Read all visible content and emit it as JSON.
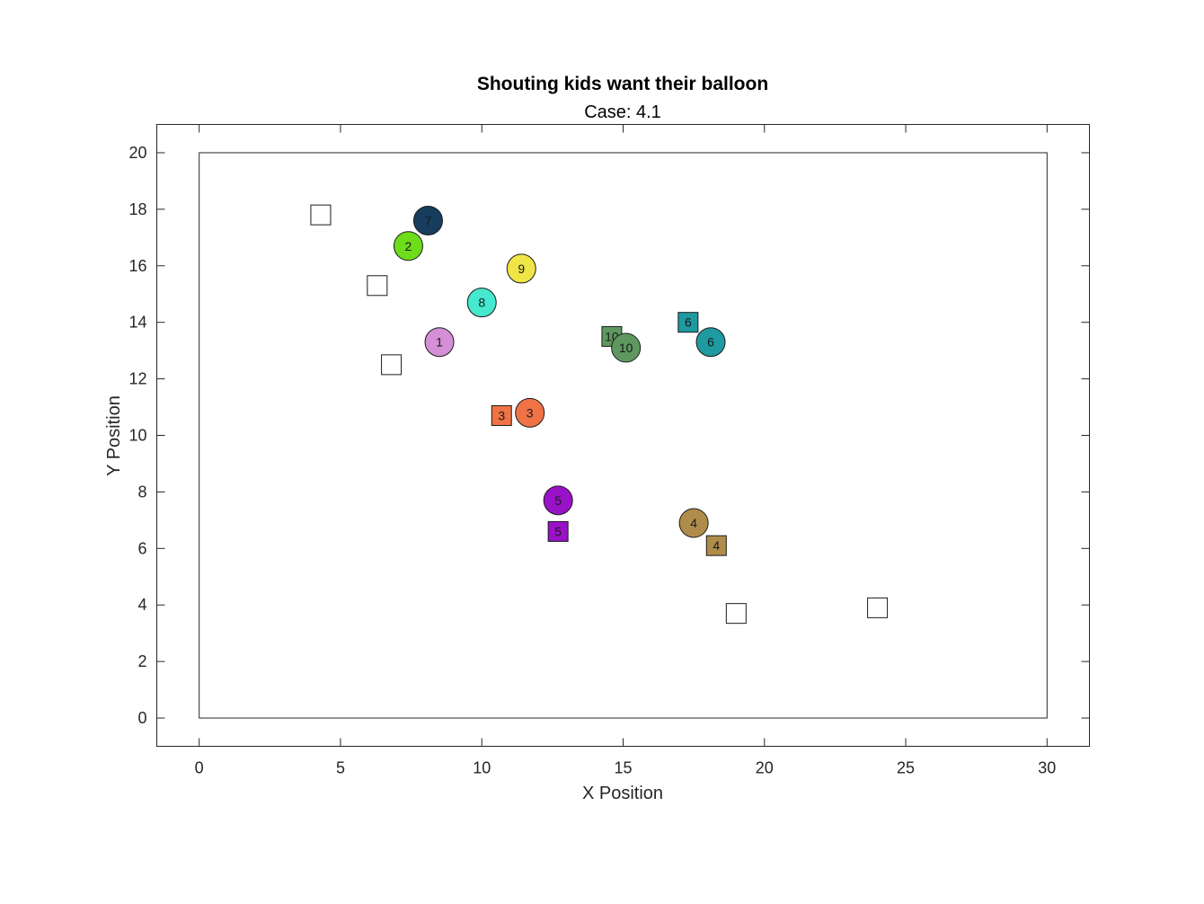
{
  "chart_data": {
    "type": "scatter",
    "title": "Shouting kids want their balloon",
    "subtitle": "Case: 4.1",
    "xlabel": "X Position",
    "ylabel": "Y Position",
    "xlim": [
      -1.5,
      31.5
    ],
    "ylim": [
      -1,
      21
    ],
    "xticks": [
      "0",
      "5",
      "10",
      "15",
      "20",
      "25",
      "30"
    ],
    "yticks": [
      "0",
      "2",
      "4",
      "6",
      "8",
      "10",
      "12",
      "14",
      "16",
      "18",
      "20"
    ],
    "boundary": {
      "x": [
        0,
        30
      ],
      "y": [
        0,
        20
      ]
    },
    "kids": [
      {
        "id": "1",
        "x": 8.5,
        "y": 13.3,
        "color": "#d48fd6"
      },
      {
        "id": "2",
        "x": 7.4,
        "y": 16.7,
        "color": "#6ddc1a"
      },
      {
        "id": "3",
        "x": 11.7,
        "y": 10.8,
        "color": "#ef7346"
      },
      {
        "id": "4",
        "x": 17.5,
        "y": 6.9,
        "color": "#b08c4a"
      },
      {
        "id": "5",
        "x": 12.7,
        "y": 7.7,
        "color": "#9a12c8"
      },
      {
        "id": "6",
        "x": 18.1,
        "y": 13.3,
        "color": "#1e9aa0"
      },
      {
        "id": "7",
        "x": 8.1,
        "y": 17.6,
        "color": "#173d5e"
      },
      {
        "id": "8",
        "x": 10.0,
        "y": 14.7,
        "color": "#46e8cf"
      },
      {
        "id": "9",
        "x": 11.4,
        "y": 15.9,
        "color": "#efe547"
      },
      {
        "id": "10",
        "x": 15.1,
        "y": 13.1,
        "color": "#5e9860"
      }
    ],
    "balloons": [
      {
        "id": "",
        "x": 4.3,
        "y": 17.8,
        "color": "#ffffff"
      },
      {
        "id": "",
        "x": 6.3,
        "y": 15.3,
        "color": "#ffffff"
      },
      {
        "id": "",
        "x": 6.8,
        "y": 12.5,
        "color": "#ffffff"
      },
      {
        "id": "3",
        "x": 10.7,
        "y": 10.7,
        "color": "#ef7346"
      },
      {
        "id": "10",
        "x": 14.6,
        "y": 13.5,
        "color": "#5e9860"
      },
      {
        "id": "6",
        "x": 17.3,
        "y": 14.0,
        "color": "#1e9aa0"
      },
      {
        "id": "5",
        "x": 12.7,
        "y": 6.6,
        "color": "#9a12c8"
      },
      {
        "id": "4",
        "x": 18.3,
        "y": 6.1,
        "color": "#b08c4a"
      },
      {
        "id": "",
        "x": 19.0,
        "y": 3.7,
        "color": "#ffffff"
      },
      {
        "id": "",
        "x": 24.0,
        "y": 3.9,
        "color": "#ffffff"
      }
    ]
  }
}
